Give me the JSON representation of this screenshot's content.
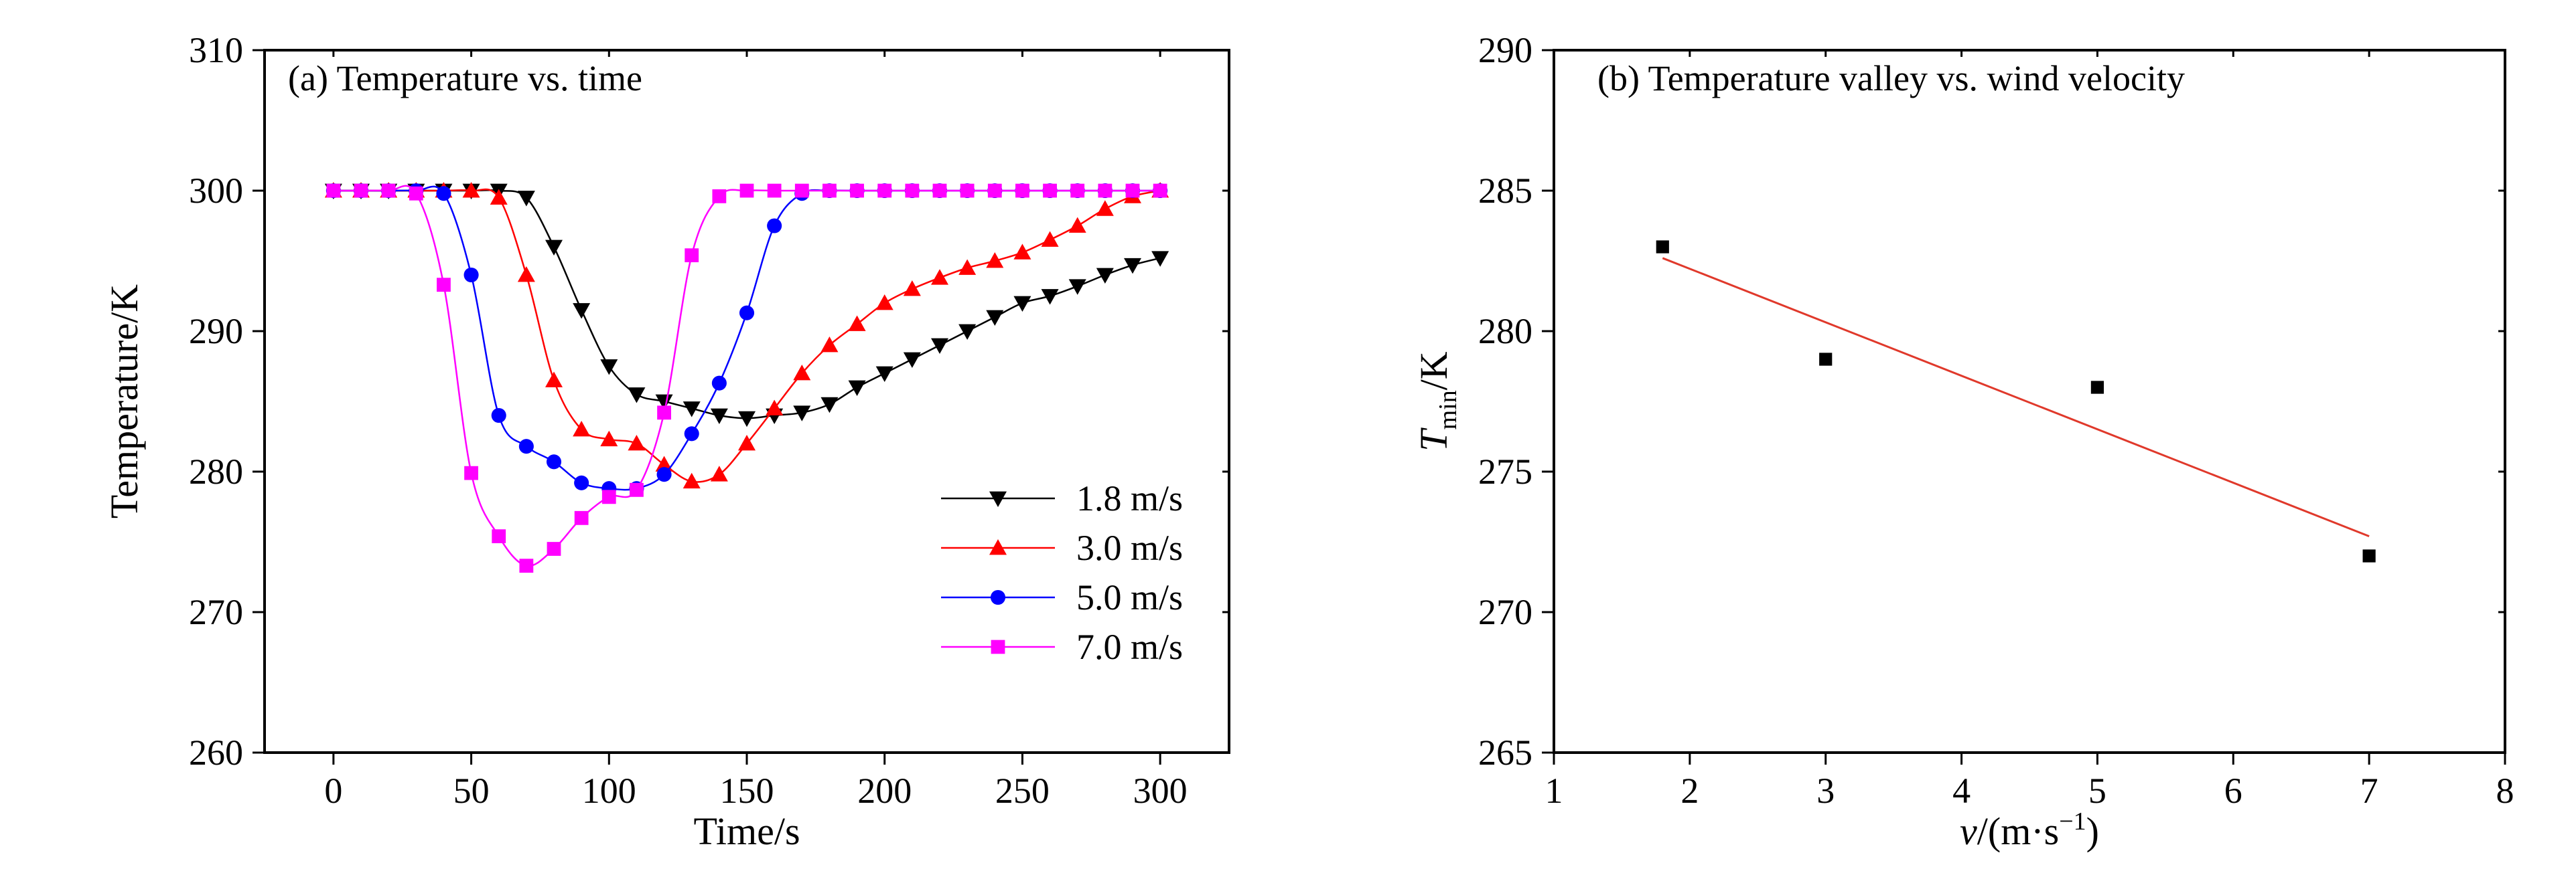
{
  "chart_data": [
    {
      "type": "line",
      "title": "(a) Temperature vs. time",
      "xlabel": "Time/s",
      "ylabel": "Temperature/K",
      "xlim": [
        -25,
        325
      ],
      "ylim": [
        260,
        310
      ],
      "xticks": [
        0,
        50,
        100,
        150,
        200,
        250,
        300
      ],
      "yticks": [
        260,
        270,
        280,
        290,
        300,
        310
      ],
      "grid": false,
      "legend_position": "lower-right",
      "series": [
        {
          "name": "1.8 m/s",
          "color": "#000000",
          "marker": "triangle-down",
          "x": [
            0,
            10,
            20,
            30,
            40,
            50,
            60,
            70,
            80,
            90,
            100,
            110,
            120,
            130,
            140,
            150,
            160,
            170,
            180,
            190,
            200,
            210,
            220,
            230,
            240,
            250,
            260,
            270,
            280,
            290,
            300
          ],
          "y": [
            300,
            300,
            300,
            300,
            300,
            300,
            300,
            299.5,
            296,
            291.5,
            287.5,
            285.5,
            285,
            284.5,
            284,
            283.8,
            284,
            284.2,
            284.8,
            286,
            287,
            288,
            289,
            290,
            291,
            292,
            292.5,
            293.2,
            294,
            294.7,
            295.2
          ]
        },
        {
          "name": "3.0 m/s",
          "color": "#ff0000",
          "marker": "triangle-up",
          "x": [
            0,
            10,
            20,
            30,
            40,
            50,
            60,
            70,
            80,
            90,
            100,
            110,
            120,
            130,
            140,
            150,
            160,
            170,
            180,
            190,
            200,
            210,
            220,
            230,
            240,
            250,
            260,
            270,
            280,
            290,
            300
          ],
          "y": [
            300,
            300,
            300,
            300,
            300,
            300,
            299.5,
            294,
            286.5,
            283,
            282.3,
            282,
            280.5,
            279.3,
            279.8,
            282,
            284.5,
            287,
            289,
            290.5,
            292,
            293,
            293.8,
            294.5,
            295,
            295.6,
            296.5,
            297.5,
            298.7,
            299.6,
            300
          ]
        },
        {
          "name": "5.0 m/s",
          "color": "#0000ff",
          "marker": "circle",
          "x": [
            0,
            10,
            20,
            30,
            40,
            50,
            60,
            70,
            80,
            90,
            100,
            110,
            120,
            130,
            140,
            150,
            160,
            170,
            180,
            190,
            200,
            210,
            220,
            230,
            240,
            250,
            260,
            270,
            280,
            290,
            300
          ],
          "y": [
            300,
            300,
            300,
            300,
            299.8,
            294,
            284,
            281.8,
            280.7,
            279.2,
            278.8,
            278.8,
            279.8,
            282.7,
            286.3,
            291.3,
            297.5,
            299.8,
            300,
            300,
            300,
            300,
            300,
            300,
            300,
            300,
            300,
            300,
            300,
            300,
            300
          ]
        },
        {
          "name": "7.0 m/s",
          "color": "#ff00ff",
          "marker": "square",
          "x": [
            0,
            10,
            20,
            30,
            40,
            50,
            60,
            70,
            80,
            90,
            100,
            110,
            120,
            130,
            140,
            150,
            160,
            170,
            180,
            190,
            200,
            210,
            220,
            230,
            240,
            250,
            260,
            270,
            280,
            290,
            300
          ],
          "y": [
            300,
            300,
            300,
            299.8,
            293.3,
            279.9,
            275.4,
            273.3,
            274.5,
            276.7,
            278.2,
            278.7,
            284.2,
            295.4,
            299.6,
            300,
            300,
            300,
            300,
            300,
            300,
            300,
            300,
            300,
            300,
            300,
            300,
            300,
            300,
            300,
            300
          ]
        }
      ]
    },
    {
      "type": "scatter",
      "title": "(b) Temperature valley vs. wind velocity",
      "xlabel": "v/(m·s⁻¹)",
      "xlabel_var": "v",
      "xlabel_rest": "/(m·s",
      "xlabel_sup": "−1",
      "xlabel_close": ")",
      "ylabel": "Tmin/K",
      "ylabel_var": "T",
      "ylabel_sub": "min",
      "ylabel_rest": "/K",
      "xlim": [
        1,
        8
      ],
      "ylim": [
        265,
        290
      ],
      "xticks": [
        1,
        2,
        3,
        4,
        5,
        6,
        7,
        8
      ],
      "yticks": [
        265,
        270,
        275,
        280,
        285,
        290
      ],
      "grid": false,
      "points": {
        "x": [
          1.8,
          3.0,
          5.0,
          7.0
        ],
        "y": [
          283,
          279,
          278,
          272
        ],
        "color": "#000000",
        "marker": "square"
      },
      "fit_line": {
        "x": [
          1.8,
          7.0
        ],
        "y": [
          282.6,
          272.7
        ],
        "color": "#e0392b"
      }
    }
  ]
}
